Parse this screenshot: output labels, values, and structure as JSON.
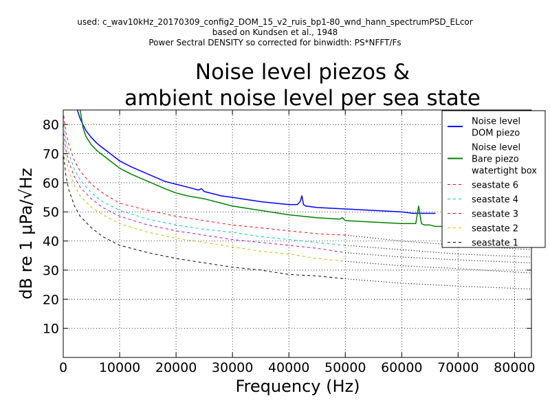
{
  "header_lines": [
    "used: c_wav10kHz_20170309_config2_DOM_15_v2_ruis_bp1-80_wnd_hann_spectrumPSD_ELcor",
    "based on Kundsen et al., 1948",
    "Power Sectral DENSITY so corrected for binwidth: PS*NFFT/Fs"
  ],
  "chart_data": {
    "type": "line",
    "title_lines": [
      "Noise level piezos &",
      "ambient noise level per sea state"
    ],
    "xlabel": "Frequency (Hz)",
    "ylabel": "dB re 1 μPa/√Hz",
    "xlim": [
      0,
      83000
    ],
    "ylim": [
      0,
      85
    ],
    "xticks": [
      0,
      10000,
      20000,
      30000,
      40000,
      50000,
      60000,
      70000,
      80000
    ],
    "yticks": [
      10,
      20,
      30,
      40,
      50,
      60,
      70,
      80
    ],
    "grid": true,
    "legend_position": "top-right",
    "series": [
      {
        "name": "Noise level DOM piezo",
        "legend_lines": [
          "Noise level",
          "DOM piezo"
        ],
        "color": "#0000ff",
        "style": "solid",
        "x": [
          2500,
          3000,
          4000,
          5000,
          6000,
          7000,
          8000,
          10000,
          12000,
          15000,
          18000,
          20000,
          22000,
          24000,
          24500,
          25000,
          28000,
          30000,
          35000,
          40000,
          41500,
          42000,
          42300,
          42600,
          43000,
          45000,
          50000,
          55000,
          60000,
          62000,
          65000,
          66000
        ],
        "y": [
          85,
          82,
          78,
          75.5,
          73.5,
          72,
          70.5,
          67.5,
          65.5,
          63,
          60.5,
          59.5,
          58.5,
          57.5,
          58,
          57,
          55.5,
          55,
          53.5,
          52.5,
          52.5,
          53.5,
          55.5,
          52.5,
          52,
          51.5,
          51,
          50.5,
          50,
          49.5,
          49.5,
          49.5
        ]
      },
      {
        "name": "Noise level Bare piezo watertight box",
        "legend_lines": [
          "Noise level",
          "Bare piezo",
          "watertight box"
        ],
        "color": "#008000",
        "style": "solid",
        "x": [
          3000,
          3500,
          4000,
          5000,
          6000,
          7000,
          8000,
          10000,
          12000,
          15000,
          18000,
          20000,
          22000,
          25000,
          28000,
          30000,
          35000,
          40000,
          45000,
          49000,
          49500,
          50000,
          55000,
          60000,
          62500,
          63000,
          63500,
          64000,
          65000,
          66000,
          68000
        ],
        "y": [
          85,
          79,
          76,
          73,
          71,
          69.5,
          68,
          65,
          63,
          60.5,
          58,
          56.5,
          55.5,
          54.5,
          53,
          52,
          50.5,
          49,
          48,
          47.5,
          48,
          47,
          46.5,
          46,
          46,
          52,
          46,
          45.5,
          45.5,
          45,
          45
        ]
      },
      {
        "name": "seastate 6",
        "color": "#ff0000",
        "style": "dashed",
        "x": [
          100,
          500,
          1000,
          2000,
          3000,
          5000,
          7000,
          10000,
          15000,
          20000,
          25000,
          30000,
          35000,
          40000,
          45000,
          50000
        ],
        "y": [
          83,
          77,
          73,
          67.5,
          64,
          59.5,
          56.5,
          53,
          50.5,
          48.5,
          47,
          45.5,
          44.5,
          43.5,
          42.5,
          42
        ],
        "dotted_x": [
          50000,
          60000,
          70000,
          83000
        ],
        "dotted_y": [
          42,
          40,
          38.5,
          37
        ]
      },
      {
        "name": "seastate 4",
        "color": "#00bfbf",
        "style": "dashed",
        "x": [
          100,
          500,
          1000,
          2000,
          3000,
          5000,
          7000,
          10000,
          15000,
          20000,
          25000,
          30000,
          35000,
          40000,
          45000,
          50000
        ],
        "y": [
          80,
          74,
          70,
          64.5,
          61,
          56.5,
          53.5,
          50.5,
          47.5,
          45.5,
          44,
          43,
          41.5,
          40.5,
          39.5,
          38.5
        ],
        "dotted_x": [
          50000,
          60000,
          70000,
          83000
        ],
        "dotted_y": [
          38.5,
          37,
          35.5,
          34.5
        ]
      },
      {
        "name": "seastate 3",
        "color": "#bf00bf",
        "style": "dashed",
        "x": [
          100,
          500,
          1000,
          2000,
          3000,
          5000,
          7000,
          10000,
          15000,
          20000,
          25000,
          30000,
          35000,
          40000,
          45000,
          50000
        ],
        "y": [
          77,
          71,
          67,
          62,
          58.5,
          54.5,
          51.5,
          48.5,
          45.5,
          43.5,
          42,
          40.5,
          39.5,
          38.5,
          37.5,
          36
        ],
        "dotted_x": [
          50000,
          60000,
          70000,
          83000
        ],
        "dotted_y": [
          36,
          34.5,
          33.5,
          32.5
        ]
      },
      {
        "name": "seastate 2",
        "color": "#bfbf00",
        "style": "dashed",
        "x": [
          100,
          500,
          1000,
          2000,
          3000,
          5000,
          7000,
          10000,
          15000,
          20000,
          25000,
          30000,
          35000,
          40000,
          45000,
          50000
        ],
        "y": [
          74,
          68,
          64,
          59,
          55.5,
          51.5,
          49,
          46,
          43,
          41,
          39.5,
          38,
          36.5,
          35.5,
          34,
          33
        ],
        "dotted_x": [
          50000,
          60000,
          70000,
          83000
        ],
        "dotted_y": [
          33,
          31.5,
          30.5,
          29
        ]
      },
      {
        "name": "seastate 1",
        "color": "#000000",
        "style": "dashed",
        "x": [
          100,
          500,
          1000,
          2000,
          3000,
          5000,
          7000,
          10000,
          15000,
          20000,
          25000,
          30000,
          35000,
          40000,
          45000,
          50000
        ],
        "y": [
          69,
          62,
          57.5,
          52,
          48.5,
          44.5,
          41.5,
          38.5,
          36,
          34,
          32.5,
          31,
          30,
          28.5,
          28,
          27
        ],
        "dotted_x": [
          50000,
          60000,
          70000,
          83000
        ],
        "dotted_y": [
          27,
          25.5,
          24.5,
          23.5
        ]
      }
    ]
  }
}
